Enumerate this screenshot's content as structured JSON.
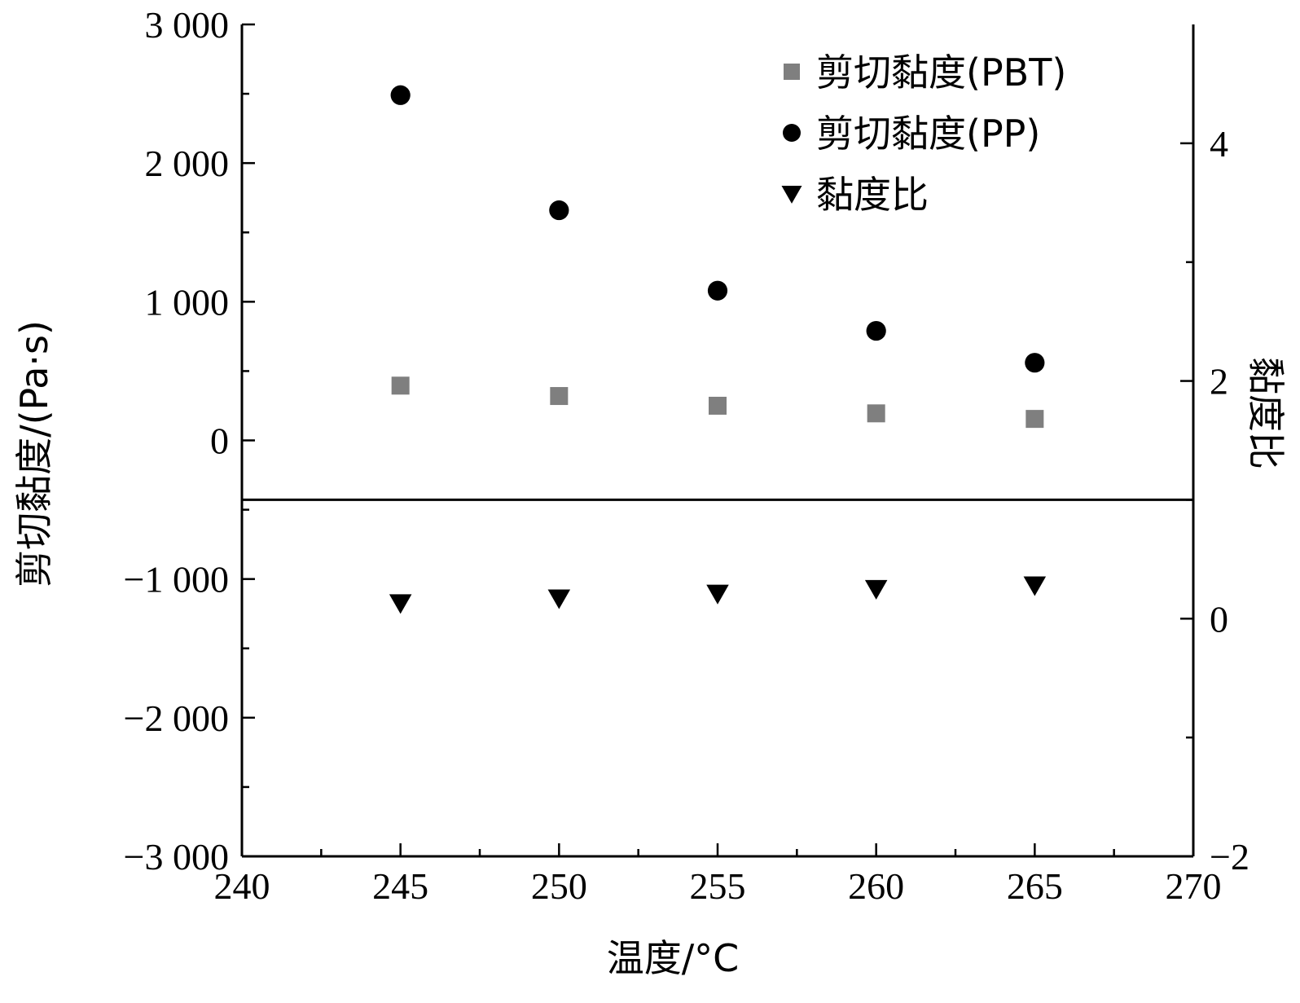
{
  "chart_data": {
    "type": "scatter",
    "xlabel": "温度/°C",
    "ylabel_left": "剪切黏度/(Pa·s)",
    "ylabel_right": "黏度比",
    "xlim": [
      240,
      270
    ],
    "ylim_left": [
      -3000,
      3000
    ],
    "ylim_right": [
      -2,
      5
    ],
    "x_ticks": [
      240,
      245,
      250,
      255,
      260,
      265,
      270
    ],
    "x_tick_labels": [
      "240",
      "245",
      "250",
      "255",
      "260",
      "265",
      "270"
    ],
    "y_left_ticks": [
      3000,
      2000,
      1000,
      0,
      -1000,
      -2000,
      -3000
    ],
    "y_left_tick_labels": [
      "3 000",
      "2 000",
      "1 000",
      "0",
      "−1 000",
      "−2 000",
      "−3 000"
    ],
    "y_right_ticks": [
      4,
      2,
      0,
      -2
    ],
    "y_right_tick_labels": [
      "4",
      "2",
      "0",
      "−2"
    ],
    "reference_line": {
      "axis": "right",
      "y": 1
    },
    "legend_position": "top-right",
    "grid": false,
    "series": [
      {
        "name": "剪切黏度(PBT)",
        "axis": "left",
        "marker": "square",
        "color": "#7f7f7f",
        "x": [
          245,
          250,
          255,
          260,
          265
        ],
        "y": [
          395,
          320,
          250,
          195,
          155
        ]
      },
      {
        "name": "剪切黏度(PP)",
        "axis": "left",
        "marker": "circle",
        "color": "#000000",
        "x": [
          245,
          250,
          255,
          260,
          265
        ],
        "y": [
          2490,
          1660,
          1080,
          790,
          560
        ]
      },
      {
        "name": "黏度比",
        "axis": "right",
        "marker": "triangle-down",
        "color": "#000000",
        "x": [
          245,
          250,
          255,
          260,
          265
        ],
        "y": [
          0.13,
          0.17,
          0.21,
          0.25,
          0.28
        ]
      }
    ]
  }
}
